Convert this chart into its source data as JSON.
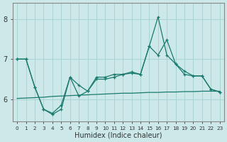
{
  "xlabel": "Humidex (Indice chaleur)",
  "xlim": [
    -0.5,
    23.5
  ],
  "ylim": [
    5.45,
    8.4
  ],
  "yticks": [
    6,
    7,
    8
  ],
  "xticks": [
    0,
    1,
    2,
    3,
    4,
    5,
    6,
    7,
    8,
    9,
    10,
    11,
    12,
    13,
    14,
    15,
    16,
    17,
    18,
    19,
    20,
    21,
    22,
    23
  ],
  "bg_color": "#cce8e8",
  "grid_color": "#a8d4d4",
  "line_color": "#1a7a6e",
  "curve1_x": [
    0,
    1,
    2,
    3,
    4,
    5,
    6,
    7,
    8,
    9,
    10,
    11,
    12,
    13,
    14,
    15,
    16,
    17,
    18,
    19,
    20,
    21,
    22,
    23
  ],
  "curve1_y": [
    7.0,
    7.0,
    6.3,
    5.75,
    5.65,
    5.85,
    6.55,
    6.35,
    6.2,
    6.55,
    6.55,
    6.62,
    6.62,
    6.68,
    6.62,
    7.32,
    8.05,
    7.1,
    6.88,
    6.62,
    6.58,
    6.58,
    6.25,
    6.18
  ],
  "curve2_x": [
    0,
    1,
    2,
    3,
    4,
    5,
    6,
    7,
    8,
    9,
    10,
    11,
    12,
    13,
    14,
    15,
    16,
    17,
    18,
    19,
    20,
    21,
    22,
    23
  ],
  "curve2_y": [
    7.0,
    7.0,
    6.3,
    5.75,
    5.62,
    5.75,
    6.55,
    6.08,
    6.2,
    6.5,
    6.5,
    6.55,
    6.62,
    6.65,
    6.62,
    7.32,
    7.1,
    7.48,
    6.88,
    6.7,
    6.58,
    6.58,
    6.25,
    6.18
  ],
  "curve3_x": [
    0,
    23
  ],
  "curve3_y": [
    6.02,
    6.2
  ],
  "curve3_full_x": [
    0,
    1,
    2,
    3,
    4,
    5,
    6,
    7,
    8,
    9,
    10,
    11,
    12,
    13,
    14,
    15,
    16,
    17,
    18,
    19,
    20,
    21,
    22,
    23
  ],
  "curve3_full_y": [
    6.02,
    6.03,
    6.04,
    6.05,
    6.07,
    6.08,
    6.09,
    6.1,
    6.11,
    6.12,
    6.13,
    6.14,
    6.15,
    6.15,
    6.16,
    6.17,
    6.17,
    6.18,
    6.18,
    6.19,
    6.19,
    6.2,
    6.2,
    6.2
  ]
}
